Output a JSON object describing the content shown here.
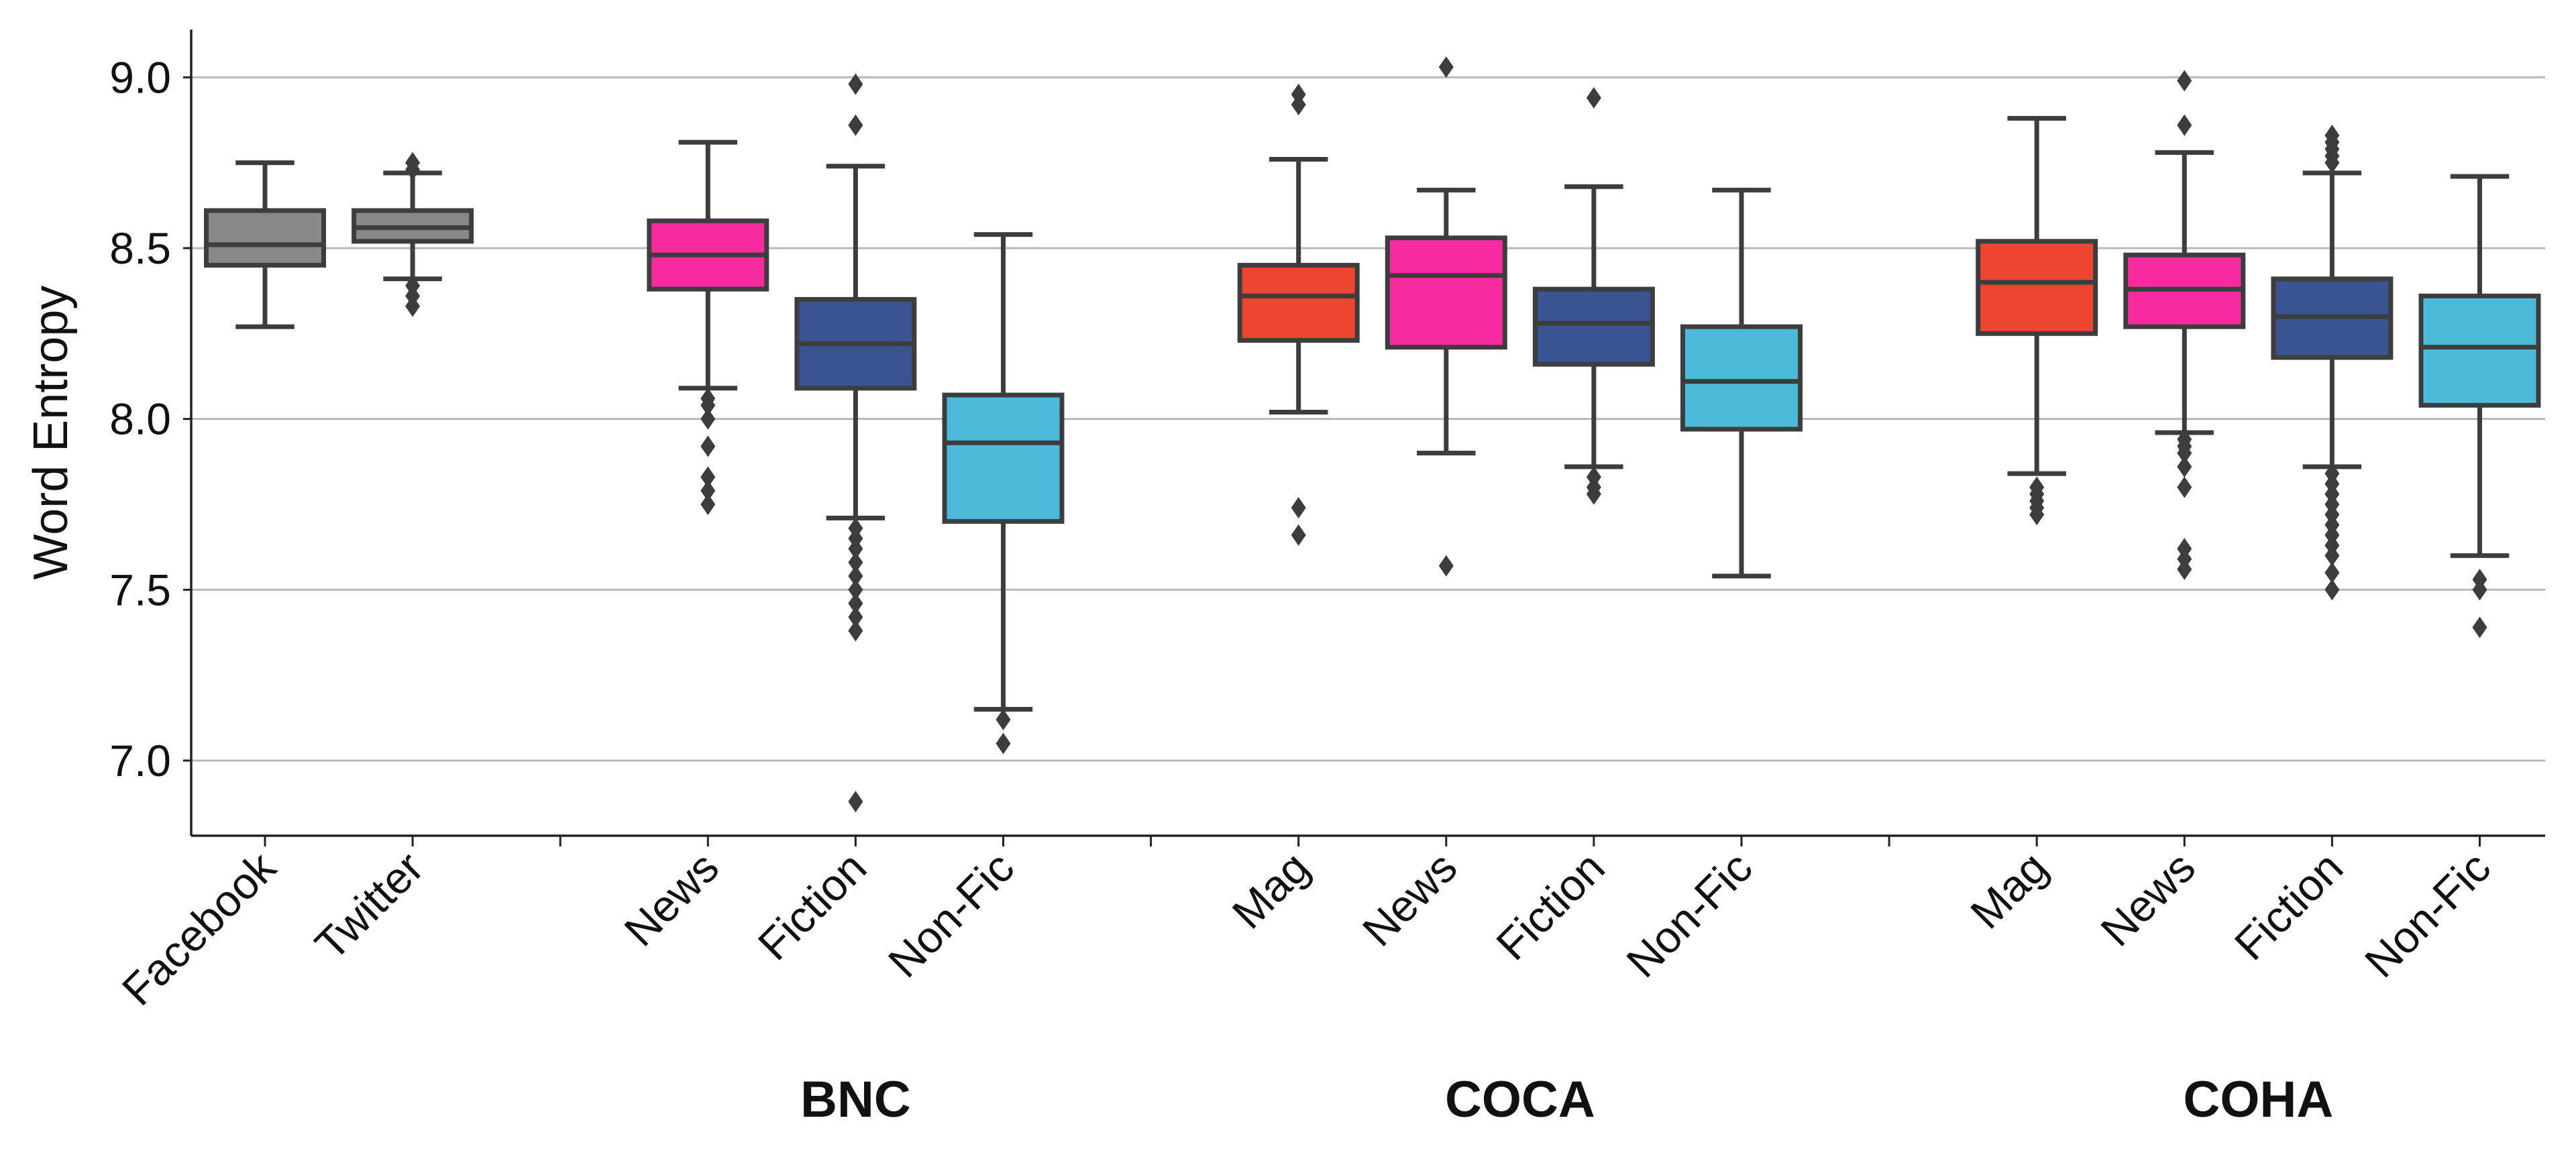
{
  "chart_data": {
    "type": "box",
    "ylabel": "Word Entropy",
    "xlabel": "",
    "ylim": [
      6.78,
      9.14
    ],
    "yticks": [
      "7.0",
      "7.5",
      "8.0",
      "8.5",
      "9.0"
    ],
    "grid": "horizontal",
    "categories": [
      "Facebook",
      "Twitter",
      "News",
      "Fiction",
      "Non-Fic",
      "Mag",
      "News",
      "Fiction",
      "Non-Fic",
      "Mag",
      "News",
      "Fiction",
      "Non-Fic"
    ],
    "groups": [
      {
        "label": "",
        "categories": [
          0,
          1
        ]
      },
      {
        "label": "BNC",
        "categories": [
          2,
          3,
          4
        ]
      },
      {
        "label": "COCA",
        "categories": [
          5,
          6,
          7,
          8
        ]
      },
      {
        "label": "COHA",
        "categories": [
          9,
          10,
          11,
          12
        ]
      }
    ],
    "boxes": [
      {
        "group": "",
        "label": "Facebook",
        "color": "#888888",
        "whisker_low": 8.27,
        "q1": 8.45,
        "median": 8.51,
        "q3": 8.61,
        "whisker_high": 8.75,
        "outliers": []
      },
      {
        "group": "",
        "label": "Twitter",
        "color": "#888888",
        "whisker_low": 8.41,
        "q1": 8.52,
        "median": 8.56,
        "q3": 8.61,
        "whisker_high": 8.72,
        "outliers": [
          8.33,
          8.36,
          8.39,
          8.73,
          8.75
        ]
      },
      {
        "group": "BNC",
        "label": "News",
        "color": "#f72b9f",
        "whisker_low": 8.09,
        "q1": 8.38,
        "median": 8.48,
        "q3": 8.58,
        "whisker_high": 8.81,
        "outliers": [
          8.06,
          8.04,
          8.0,
          7.92,
          7.83,
          7.79,
          7.75
        ]
      },
      {
        "group": "BNC",
        "label": "Fiction",
        "color": "#3a5391",
        "whisker_low": 7.71,
        "q1": 8.09,
        "median": 8.22,
        "q3": 8.35,
        "whisker_high": 8.74,
        "outliers": [
          8.86,
          8.98,
          7.68,
          7.65,
          7.62,
          7.58,
          7.54,
          7.5,
          7.46,
          7.42,
          7.38,
          6.88
        ]
      },
      {
        "group": "BNC",
        "label": "Non-Fic",
        "color": "#4cbbd9",
        "whisker_low": 7.15,
        "q1": 7.7,
        "median": 7.93,
        "q3": 8.07,
        "whisker_high": 8.54,
        "outliers": [
          7.12,
          7.05
        ]
      },
      {
        "group": "COCA",
        "label": "Mag",
        "color": "#ec4530",
        "whisker_low": 8.02,
        "q1": 8.23,
        "median": 8.36,
        "q3": 8.45,
        "whisker_high": 8.76,
        "outliers": [
          8.92,
          8.95,
          7.74,
          7.66
        ]
      },
      {
        "group": "COCA",
        "label": "News",
        "color": "#f72b9f",
        "whisker_low": 7.9,
        "q1": 8.21,
        "median": 8.42,
        "q3": 8.53,
        "whisker_high": 8.67,
        "outliers": [
          9.03,
          7.57
        ]
      },
      {
        "group": "COCA",
        "label": "Fiction",
        "color": "#3a5391",
        "whisker_low": 7.86,
        "q1": 8.16,
        "median": 8.28,
        "q3": 8.38,
        "whisker_high": 8.68,
        "outliers": [
          8.94,
          7.83,
          7.8,
          7.78
        ]
      },
      {
        "group": "COCA",
        "label": "Non-Fic",
        "color": "#4cbbd9",
        "whisker_low": 7.54,
        "q1": 7.97,
        "median": 8.11,
        "q3": 8.27,
        "whisker_high": 8.67,
        "outliers": []
      },
      {
        "group": "COHA",
        "label": "Mag",
        "color": "#ec4530",
        "whisker_low": 7.84,
        "q1": 8.25,
        "median": 8.4,
        "q3": 8.52,
        "whisker_high": 8.88,
        "outliers": [
          7.8,
          7.78,
          7.76,
          7.74,
          7.72
        ]
      },
      {
        "group": "COHA",
        "label": "News",
        "color": "#f72b9f",
        "whisker_low": 7.96,
        "q1": 8.27,
        "median": 8.38,
        "q3": 8.48,
        "whisker_high": 8.78,
        "outliers": [
          8.86,
          8.99,
          7.94,
          7.92,
          7.9,
          7.86,
          7.8,
          7.62,
          7.59,
          7.56
        ]
      },
      {
        "group": "COHA",
        "label": "Fiction",
        "color": "#3a5391",
        "whisker_low": 7.86,
        "q1": 8.18,
        "median": 8.3,
        "q3": 8.41,
        "whisker_high": 8.72,
        "outliers": [
          8.75,
          8.77,
          8.79,
          8.81,
          8.83,
          7.84,
          7.81,
          7.78,
          7.75,
          7.72,
          7.69,
          7.66,
          7.63,
          7.6,
          7.55,
          7.5
        ]
      },
      {
        "group": "COHA",
        "label": "Non-Fic",
        "color": "#4cbbd9",
        "whisker_low": 7.6,
        "q1": 8.04,
        "median": 8.21,
        "q3": 8.36,
        "whisker_high": 8.71,
        "outliers": [
          7.53,
          7.5,
          7.39
        ]
      }
    ]
  }
}
